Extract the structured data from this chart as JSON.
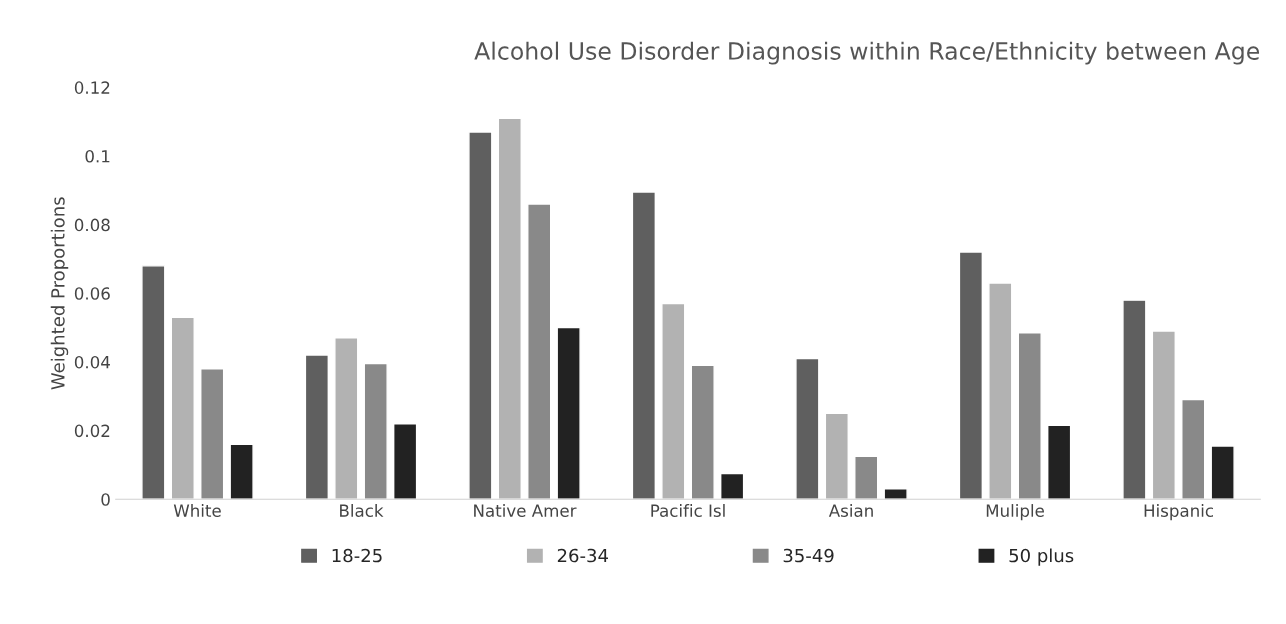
{
  "chart_data": {
    "type": "bar",
    "title": "Alcohol Use Disorder Diagnosis within Race/Ethnicity between Age",
    "ylabel": "Weighted Proportions",
    "categories": [
      "White",
      "Black",
      "Native Amer",
      "Pacific Isl",
      "Asian",
      "Muliple",
      "Hispanic"
    ],
    "series": [
      {
        "name": "18-25",
        "color": "#5f5f5f",
        "values": [
          0.068,
          0.042,
          0.107,
          0.0895,
          0.041,
          0.072,
          0.058
        ]
      },
      {
        "name": "26-34",
        "color": "#b2b2b2",
        "values": [
          0.053,
          0.047,
          0.111,
          0.057,
          0.025,
          0.063,
          0.049
        ]
      },
      {
        "name": "35-49",
        "color": "#898989",
        "values": [
          0.038,
          0.0395,
          0.086,
          0.039,
          0.0125,
          0.0485,
          0.029
        ]
      },
      {
        "name": "50 plus",
        "color": "#222222",
        "values": [
          0.016,
          0.022,
          0.05,
          0.0075,
          0.003,
          0.0215,
          0.0155
        ]
      }
    ],
    "ylim": [
      0,
      0.12
    ],
    "yticks": [
      0,
      0.02,
      0.04,
      0.06,
      0.08,
      {
        "value": 0.1,
        "label": "0.1"
      },
      0.12
    ],
    "grid": false,
    "legend": "bottom"
  }
}
